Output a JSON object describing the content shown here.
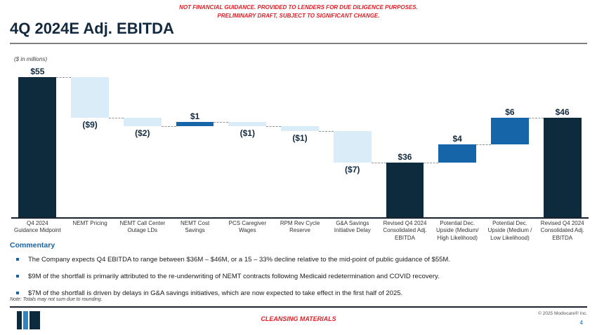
{
  "disclaimer": {
    "line1": "NOT FINANCIAL GUIDANCE. PROVIDED TO LENDERS FOR DUE DILIGENCE PURPOSES.",
    "line2": "PRELIMINARY DRAFT, SUBJECT TO SIGNIFICANT CHANGE."
  },
  "title": "4Q 2024E Adj. EBITDA",
  "chart_data": {
    "type": "bar",
    "subtype": "waterfall",
    "title": "4Q 2024E Adj. EBITDA",
    "units_note": "($ in millions)",
    "categories": [
      "Q4 2024 Guidance Midpoint",
      "NEMT Pricing",
      "NEMT Call Center Outage LDs",
      "NEMT Cost Savings",
      "PCS Caregiver Wages",
      "RPM Rev Cycle Reserve",
      "G&A Savings Initiative Delay",
      "Revised Q4 2024 Consolidated Adj. EBITDA",
      "Potential Dec. Upside (Medium/ High Likelihood)",
      "Potential Dec. Upside (Medium / Low Likelihood)",
      "Revised Q4 2024 Consolidated Adj. EBITDA"
    ],
    "values": [
      55,
      -9,
      -2,
      1,
      -1,
      -1,
      -7,
      36,
      4,
      6,
      46
    ],
    "value_labels": [
      "$55",
      "($9)",
      "($2)",
      "$1",
      "($1)",
      "($1)",
      "($7)",
      "$36",
      "$4",
      "$6",
      "$46"
    ],
    "bar_roles": [
      "total",
      "negative",
      "negative",
      "positive",
      "negative",
      "negative",
      "negative",
      "total",
      "positive",
      "positive",
      "total"
    ],
    "colors": {
      "total": "#0e2b3d",
      "negative": "#d9ecf7",
      "positive": "#1565a8"
    },
    "legend": "none",
    "grid": "off",
    "not_drawn_to_zero_scale": true
  },
  "commentary": {
    "heading": "Commentary",
    "bullets": [
      "The Company expects Q4 EBITDA to range between $36M – $46M, or a 15 – 33% decline relative to the mid-point of public guidance of $55M.",
      "$9M of the shortfall is primarily attributed to the re-underwriting of NEMT contracts following Medicaid redetermination and COVID recovery.",
      "$7M of the shortfall is driven by delays in G&A savings initiatives, which are now expected to take effect in the first half of 2025."
    ]
  },
  "note": "Note: Totals may not sum due to rounding.",
  "footer": {
    "center": "CLEANSING MATERIALS",
    "copyright": "© 2025 Modivcare® Inc.",
    "page_number": "4"
  }
}
